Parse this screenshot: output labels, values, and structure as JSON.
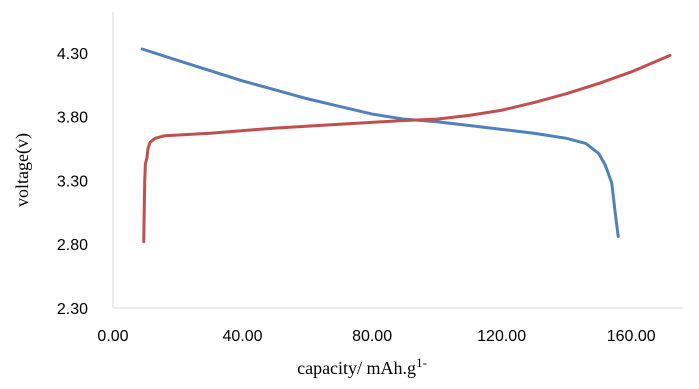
{
  "chart_data": {
    "type": "line",
    "title": "",
    "xlabel": "capacity/ mAh.g",
    "xlabel_superscript": "1-",
    "ylabel": "voltage(v)",
    "xlim": [
      0,
      176
    ],
    "ylim": [
      2.3,
      4.62
    ],
    "x_ticks": [
      {
        "value": 0,
        "label": "0.00"
      },
      {
        "value": 40,
        "label": "40.00"
      },
      {
        "value": 80,
        "label": "80.00"
      },
      {
        "value": 120,
        "label": "120.00"
      },
      {
        "value": 160,
        "label": "160.00"
      }
    ],
    "y_ticks": [
      {
        "value": 2.3,
        "label": "2.30"
      },
      {
        "value": 2.8,
        "label": "2.80"
      },
      {
        "value": 3.3,
        "label": "3.30"
      },
      {
        "value": 3.8,
        "label": "3.80"
      },
      {
        "value": 4.3,
        "label": "4.30"
      }
    ],
    "grid": false,
    "legend": "none",
    "series": [
      {
        "color": "#4f81bd",
        "points": [
          [
            9,
            4.33
          ],
          [
            20,
            4.24
          ],
          [
            30,
            4.16
          ],
          [
            40,
            4.08
          ],
          [
            50,
            4.01
          ],
          [
            60,
            3.94
          ],
          [
            70,
            3.88
          ],
          [
            80,
            3.82
          ],
          [
            90,
            3.78
          ],
          [
            100,
            3.76
          ],
          [
            110,
            3.73
          ],
          [
            120,
            3.7
          ],
          [
            130,
            3.67
          ],
          [
            140,
            3.63
          ],
          [
            146,
            3.59
          ],
          [
            150,
            3.51
          ],
          [
            152,
            3.42
          ],
          [
            154,
            3.28
          ],
          [
            155,
            3.06
          ],
          [
            156,
            2.86
          ]
        ]
      },
      {
        "color": "#c0504d",
        "points": [
          [
            9.5,
            2.82
          ],
          [
            9.6,
            3.0
          ],
          [
            9.8,
            3.3
          ],
          [
            10,
            3.43
          ],
          [
            10.5,
            3.48
          ],
          [
            10.8,
            3.55
          ],
          [
            11.5,
            3.6
          ],
          [
            13,
            3.63
          ],
          [
            16,
            3.65
          ],
          [
            30,
            3.67
          ],
          [
            50,
            3.71
          ],
          [
            70,
            3.74
          ],
          [
            90,
            3.77
          ],
          [
            100,
            3.78
          ],
          [
            110,
            3.81
          ],
          [
            120,
            3.85
          ],
          [
            130,
            3.91
          ],
          [
            140,
            3.98
          ],
          [
            150,
            4.06
          ],
          [
            160,
            4.15
          ],
          [
            172,
            4.28
          ]
        ]
      }
    ]
  }
}
